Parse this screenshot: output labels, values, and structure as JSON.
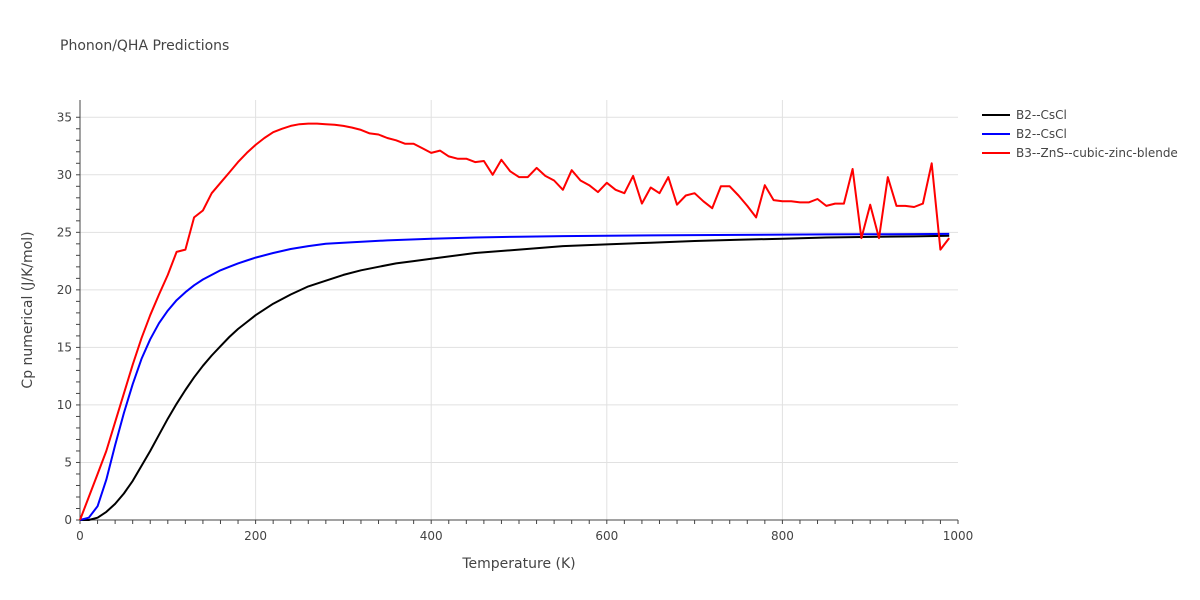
{
  "chart_data": {
    "type": "line",
    "title": "Phonon/QHA Predictions",
    "xlabel": "Temperature (K)",
    "ylabel": "Cp numerical (J/K/mol)",
    "xlim": [
      0,
      1000
    ],
    "ylim": [
      0,
      36.5
    ],
    "x_ticks": [
      0,
      200,
      400,
      600,
      800,
      1000
    ],
    "y_ticks": [
      0,
      5,
      10,
      15,
      20,
      25,
      30,
      35
    ],
    "grid": true,
    "legend_position": "top-right",
    "series": [
      {
        "name": "B2--CsCl",
        "color": "#000000",
        "x": [
          0,
          10,
          20,
          30,
          40,
          50,
          60,
          70,
          80,
          90,
          100,
          110,
          120,
          130,
          140,
          150,
          160,
          170,
          180,
          190,
          200,
          220,
          240,
          260,
          280,
          300,
          320,
          340,
          360,
          380,
          400,
          450,
          500,
          550,
          600,
          650,
          700,
          750,
          800,
          850,
          900,
          950,
          990
        ],
        "y": [
          0,
          0,
          0.2,
          0.7,
          1.4,
          2.3,
          3.4,
          4.7,
          6.0,
          7.4,
          8.8,
          10.1,
          11.3,
          12.4,
          13.4,
          14.3,
          15.1,
          15.9,
          16.6,
          17.2,
          17.8,
          18.8,
          19.6,
          20.3,
          20.8,
          21.3,
          21.7,
          22.0,
          22.3,
          22.5,
          22.7,
          23.2,
          23.5,
          23.8,
          23.95,
          24.1,
          24.25,
          24.35,
          24.45,
          24.55,
          24.6,
          24.65,
          24.7
        ]
      },
      {
        "name": "B2--CsCl",
        "color": "#0000ff",
        "x": [
          0,
          10,
          20,
          30,
          40,
          50,
          60,
          70,
          80,
          90,
          100,
          110,
          120,
          130,
          140,
          150,
          160,
          170,
          180,
          190,
          200,
          220,
          240,
          260,
          280,
          300,
          350,
          400,
          450,
          500,
          550,
          600,
          650,
          700,
          750,
          800,
          850,
          900,
          950,
          990
        ],
        "y": [
          0,
          0.2,
          1.2,
          3.5,
          6.5,
          9.3,
          11.8,
          14.0,
          15.7,
          17.1,
          18.2,
          19.1,
          19.8,
          20.4,
          20.9,
          21.3,
          21.7,
          22.0,
          22.3,
          22.55,
          22.8,
          23.2,
          23.55,
          23.8,
          24.0,
          24.1,
          24.3,
          24.45,
          24.55,
          24.62,
          24.67,
          24.7,
          24.73,
          24.76,
          24.78,
          24.8,
          24.82,
          24.83,
          24.85,
          24.86
        ]
      },
      {
        "name": "B3--ZnS--cubic-zinc-blende",
        "color": "#ff0000",
        "x": [
          0,
          10,
          20,
          30,
          40,
          50,
          60,
          70,
          80,
          90,
          100,
          110,
          120,
          130,
          140,
          150,
          160,
          170,
          180,
          190,
          200,
          210,
          220,
          230,
          240,
          250,
          260,
          270,
          280,
          290,
          300,
          310,
          320,
          330,
          340,
          350,
          360,
          370,
          380,
          390,
          400,
          410,
          420,
          430,
          440,
          450,
          460,
          470,
          480,
          490,
          500,
          510,
          520,
          530,
          540,
          550,
          560,
          570,
          580,
          590,
          600,
          610,
          620,
          630,
          640,
          650,
          660,
          670,
          680,
          690,
          700,
          710,
          720,
          730,
          740,
          750,
          760,
          770,
          780,
          790,
          800,
          810,
          820,
          830,
          840,
          850,
          860,
          870,
          880,
          890,
          900,
          910,
          920,
          930,
          940,
          950,
          960,
          970,
          980,
          990
        ],
        "y": [
          0,
          2.0,
          4.0,
          6.0,
          8.5,
          11.0,
          13.5,
          15.8,
          17.8,
          19.6,
          21.3,
          23.3,
          23.5,
          26.3,
          26.9,
          28.4,
          29.3,
          30.2,
          31.1,
          31.9,
          32.6,
          33.2,
          33.7,
          34.0,
          34.25,
          34.4,
          34.45,
          34.45,
          34.4,
          34.35,
          34.25,
          34.1,
          33.9,
          33.6,
          33.5,
          33.2,
          33.0,
          32.7,
          32.7,
          32.3,
          31.9,
          32.1,
          31.6,
          31.4,
          31.4,
          31.1,
          31.2,
          30.0,
          31.3,
          30.3,
          29.8,
          29.8,
          30.6,
          29.9,
          29.5,
          28.7,
          30.4,
          29.5,
          29.1,
          28.5,
          29.3,
          28.7,
          28.4,
          29.9,
          27.5,
          28.9,
          28.4,
          29.8,
          27.4,
          28.2,
          28.4,
          27.7,
          27.1,
          29.0,
          29.0,
          28.2,
          27.3,
          26.3,
          29.1,
          27.8,
          27.7,
          27.7,
          27.6,
          27.6,
          27.9,
          27.3,
          27.5,
          27.5,
          30.5,
          24.5,
          27.4,
          24.5,
          29.8,
          27.3,
          27.3,
          27.2,
          27.5,
          31.0,
          23.5,
          24.5
        ]
      }
    ]
  }
}
